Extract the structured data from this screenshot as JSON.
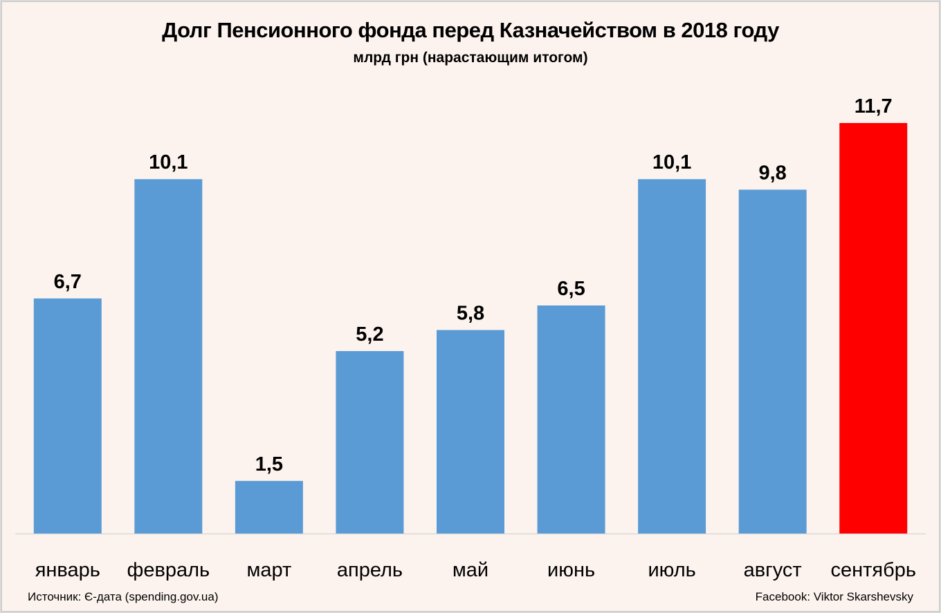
{
  "chart_data": {
    "type": "bar",
    "title": "Долг Пенсионного фонда перед Казначейством в 2018 году",
    "subtitle": "млрд грн (нарастающим итогом)",
    "xlabel": "",
    "ylabel": "",
    "categories": [
      "январь",
      "февраль",
      "март",
      "апрель",
      "май",
      "июнь",
      "июль",
      "август",
      "сентябрь"
    ],
    "values": [
      6.7,
      10.1,
      1.5,
      5.2,
      5.8,
      6.5,
      10.1,
      9.8,
      11.7
    ],
    "value_labels": [
      "6,7",
      "10,1",
      "1,5",
      "5,2",
      "5,8",
      "6,5",
      "10,1",
      "9,8",
      "11,7"
    ],
    "ylim": [
      0,
      11.7
    ],
    "grid": false,
    "colors": [
      "#5b9bd5",
      "#5b9bd5",
      "#5b9bd5",
      "#5b9bd5",
      "#5b9bd5",
      "#5b9bd5",
      "#5b9bd5",
      "#5b9bd5",
      "#ff0000"
    ]
  },
  "footer": {
    "source": "Источник: Є-дата (spending.gov.ua)",
    "credit": "Facebook: Viktor Skarshevsky"
  }
}
